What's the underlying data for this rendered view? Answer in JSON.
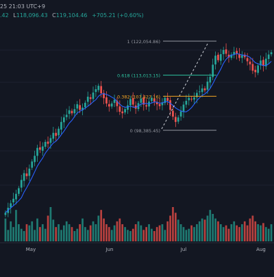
{
  "header": {
    "timestamp": "25 21:03 UTC+9",
    "ohlc_open_partial": ".42",
    "low_label": "L",
    "low_value": "118,096.43",
    "close_label": "C",
    "close_value": "119,104.46",
    "change_value": "+705.21 (+0.60%)"
  },
  "fib": {
    "levels": [
      {
        "ratio": 1,
        "label": "1 (122,054.86)",
        "price": 122054.86,
        "color": "#9598a1"
      },
      {
        "ratio": 0.618,
        "label": "0.618 (113,013.15)",
        "price": 113013.15,
        "color": "#2ec4a0"
      },
      {
        "ratio": 0.382,
        "label": "0.382 (107,427.16)",
        "price": 107427.16,
        "color": "#f5a623"
      },
      {
        "ratio": 0,
        "label": "0 (98,385.45)",
        "price": 98385.45,
        "color": "#9598a1"
      }
    ]
  },
  "time_axis": {
    "labels": [
      "May",
      "Jun",
      "Jul",
      "Aug"
    ]
  },
  "colors": {
    "background": "#131722",
    "up": "#26a69a",
    "down": "#ef5350",
    "ma": "#2962ff",
    "grid": "#1e2230"
  },
  "chart_data": {
    "type": "candlestick",
    "x_axis_labels": [
      "May",
      "Jun",
      "Jul",
      "Aug"
    ],
    "fib_retracement": [
      {
        "ratio": 1,
        "price": 122054.86
      },
      {
        "ratio": 0.618,
        "price": 113013.15
      },
      {
        "ratio": 0.382,
        "price": 107427.16
      },
      {
        "ratio": 0,
        "price": 98385.45
      }
    ],
    "price_close_series": [
      76500,
      77800,
      79000,
      80200,
      81500,
      83000,
      85200,
      87000,
      86200,
      88200,
      90100,
      91600,
      93700,
      93200,
      94100,
      95300,
      94800,
      96300,
      97700,
      96900,
      98800,
      100600,
      101800,
      102500,
      103700,
      102900,
      104000,
      105300,
      103800,
      104400,
      105700,
      107300,
      106700,
      108400,
      109300,
      110200,
      108200,
      106900,
      105500,
      104700,
      105500,
      106500,
      104800,
      103300,
      102900,
      104000,
      105000,
      106700,
      105200,
      104100,
      105600,
      106800,
      105200,
      104700,
      106000,
      107000,
      106000,
      105300,
      104800,
      105800,
      107000,
      106200,
      103800,
      102000,
      100600,
      101800,
      103400,
      105200,
      106200,
      107000,
      106600,
      107100,
      108300,
      108700,
      109500,
      109000,
      111300,
      112600,
      115800,
      118200,
      117000,
      118600,
      119700,
      118700,
      117700,
      118500,
      119200,
      118800,
      117600,
      118300,
      117800,
      116700,
      115900,
      114200,
      113800,
      115600,
      116900,
      115600,
      117400,
      118500,
      119104
    ],
    "volume_series": [
      40,
      20,
      35,
      25,
      55,
      30,
      22,
      18,
      30,
      28,
      35,
      20,
      40,
      25,
      30,
      22,
      45,
      60,
      38,
      25,
      30,
      20,
      28,
      35,
      30,
      25,
      18,
      22,
      30,
      40,
      25,
      20,
      28,
      35,
      30,
      45,
      55,
      40,
      30,
      25,
      20,
      28,
      35,
      40,
      30,
      25,
      20,
      18,
      22,
      30,
      35,
      28,
      20,
      25,
      30,
      22,
      18,
      25,
      28,
      30,
      20,
      35,
      45,
      60,
      50,
      38,
      30,
      25,
      20,
      22,
      28,
      25,
      30,
      35,
      40,
      38,
      45,
      55,
      48,
      40,
      35,
      30,
      25,
      28,
      22,
      30,
      35,
      28,
      25,
      30,
      35,
      28,
      40,
      45,
      35,
      30,
      28,
      32,
      25,
      22,
      30
    ]
  }
}
